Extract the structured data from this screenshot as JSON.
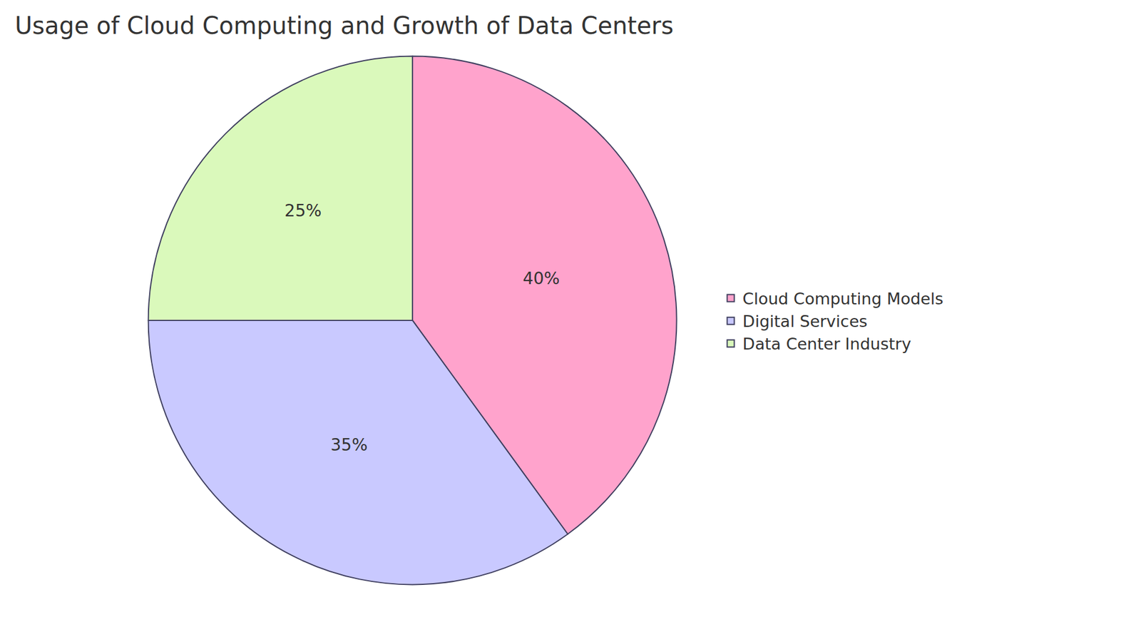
{
  "chart_data": {
    "type": "pie",
    "title": "Usage of Cloud Computing and Growth of Data Centers",
    "categories": [
      "Cloud Computing Models",
      "Digital Services",
      "Data Center Industry"
    ],
    "values": [
      40,
      35,
      25
    ],
    "value_labels": [
      "40%",
      "35%",
      "25%"
    ],
    "colors": [
      "#ffa3cc",
      "#c9c9ff",
      "#daf9bb"
    ],
    "data_labels": true,
    "legend": "right"
  }
}
